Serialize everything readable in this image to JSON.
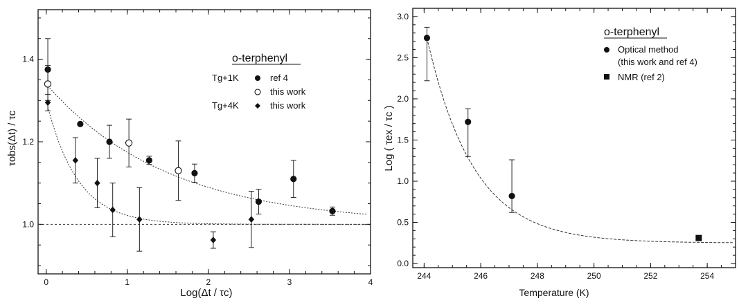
{
  "chart_data": [
    {
      "type": "scatter",
      "title": "",
      "xlabel": "Log(Δt / τc)",
      "ylabel": "τobs(Δt) / τc",
      "xlim": [
        -0.1,
        4.0
      ],
      "ylim": [
        0.88,
        1.52
      ],
      "xticks": [
        "0",
        "1",
        "2",
        "3",
        "4"
      ],
      "yticks": [
        "1.0",
        "1.2",
        "1.4"
      ],
      "reference_line_y": 1.0,
      "legend": {
        "title": "o-terphenyl",
        "entries": [
          {
            "group": "Tg+1K",
            "marker": "filled-circle",
            "label": "ref 4"
          },
          {
            "group": "",
            "marker": "open-circle",
            "label": "this work"
          },
          {
            "group": "Tg+4K",
            "marker": "filled-diamond",
            "label": "this work"
          }
        ]
      },
      "series": [
        {
          "marker": "filled-circle",
          "points": [
            {
              "x": 0.02,
              "y": 1.375,
              "err": 0.075
            },
            {
              "x": 0.42,
              "y": 1.243,
              "err": 0
            },
            {
              "x": 0.78,
              "y": 1.2,
              "err": 0.04
            },
            {
              "x": 1.27,
              "y": 1.155,
              "err": 0.01
            },
            {
              "x": 1.83,
              "y": 1.124,
              "err": 0.022
            },
            {
              "x": 2.62,
              "y": 1.055,
              "err": 0.03
            },
            {
              "x": 3.05,
              "y": 1.11,
              "err": 0.045
            },
            {
              "x": 3.53,
              "y": 1.032,
              "err": 0.01
            }
          ]
        },
        {
          "marker": "open-circle",
          "points": [
            {
              "x": 0.02,
              "y": 1.34,
              "err": 0.045
            },
            {
              "x": 1.02,
              "y": 1.197,
              "err": 0.058
            },
            {
              "x": 1.63,
              "y": 1.13,
              "err": 0.072
            }
          ]
        },
        {
          "marker": "filled-diamond",
          "points": [
            {
              "x": 0.02,
              "y": 1.295,
              "err": 0.02
            },
            {
              "x": 0.36,
              "y": 1.155,
              "err": 0.055
            },
            {
              "x": 0.63,
              "y": 1.1,
              "err": 0.06
            },
            {
              "x": 0.82,
              "y": 1.035,
              "err": 0.065
            },
            {
              "x": 1.15,
              "y": 1.012,
              "err": 0.077
            },
            {
              "x": 2.06,
              "y": 0.962,
              "err": 0.02
            },
            {
              "x": 2.53,
              "y": 1.012,
              "err": 0.068
            }
          ]
        }
      ]
    },
    {
      "type": "scatter",
      "title": "",
      "xlabel": "Temperature (K)",
      "ylabel": "Log ( τex / τc )",
      "xlim": [
        243.6,
        255.0
      ],
      "ylim": [
        -0.05,
        3.1
      ],
      "xticks": [
        "244",
        "246",
        "248",
        "250",
        "252",
        "254"
      ],
      "yticks": [
        "0.0",
        "0.5",
        "1.0",
        "1.5",
        "2.0",
        "2.5",
        "3.0"
      ],
      "legend": {
        "title": "o-terphenyl",
        "entries": [
          {
            "marker": "filled-circle",
            "label": "Optical method",
            "sublabel": "(this work and ref 4)"
          },
          {
            "marker": "filled-square",
            "label": "NMR (ref 2)"
          }
        ]
      },
      "series": [
        {
          "marker": "filled-circle",
          "points": [
            {
              "x": 244.1,
              "y": 2.74,
              "err_low": 0.52,
              "err_high": 0.13
            },
            {
              "x": 245.55,
              "y": 1.72,
              "err_low": 0.42,
              "err_high": 0.16
            },
            {
              "x": 247.1,
              "y": 0.82,
              "err_low": 0.2,
              "err_high": 0.44
            }
          ]
        },
        {
          "marker": "filled-square",
          "points": [
            {
              "x": 253.7,
              "y": 0.31,
              "err_low": 0,
              "err_high": 0
            }
          ]
        }
      ]
    }
  ]
}
